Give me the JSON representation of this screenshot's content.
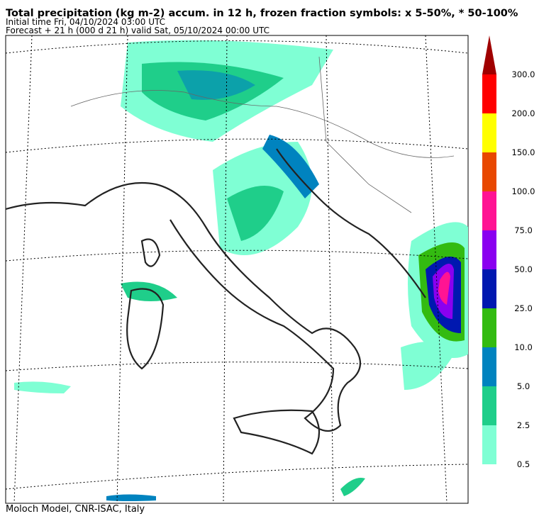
{
  "header": {
    "title": "Total precipitation (kg m-2) accum. in 12 h, frozen fraction symbols: x 5-50%, * 50-100%",
    "initial": "Initial time  Fri, 04/10/2024  03:00 UTC",
    "forecast": "Forecast  +  21 h  (000 d 21 h)  valid Sat, 05/10/2024 00:00 UTC"
  },
  "colorbar": {
    "labels": [
      "0.5",
      "2.5",
      "5.0",
      "10.0",
      "25.0",
      "50.0",
      "75.0",
      "100.0",
      "150.0",
      "200.0",
      "300.0"
    ],
    "colors": [
      "#7fffd4",
      "#1fce8a",
      "#0083bf",
      "#33bb11",
      "#0018b0",
      "#8a00f0",
      "#ff1493",
      "#e84800",
      "#ffff00",
      "#ff0000",
      "#a00000"
    ]
  },
  "footer": "Moloch Model, CNR-ISAC, Italy"
}
